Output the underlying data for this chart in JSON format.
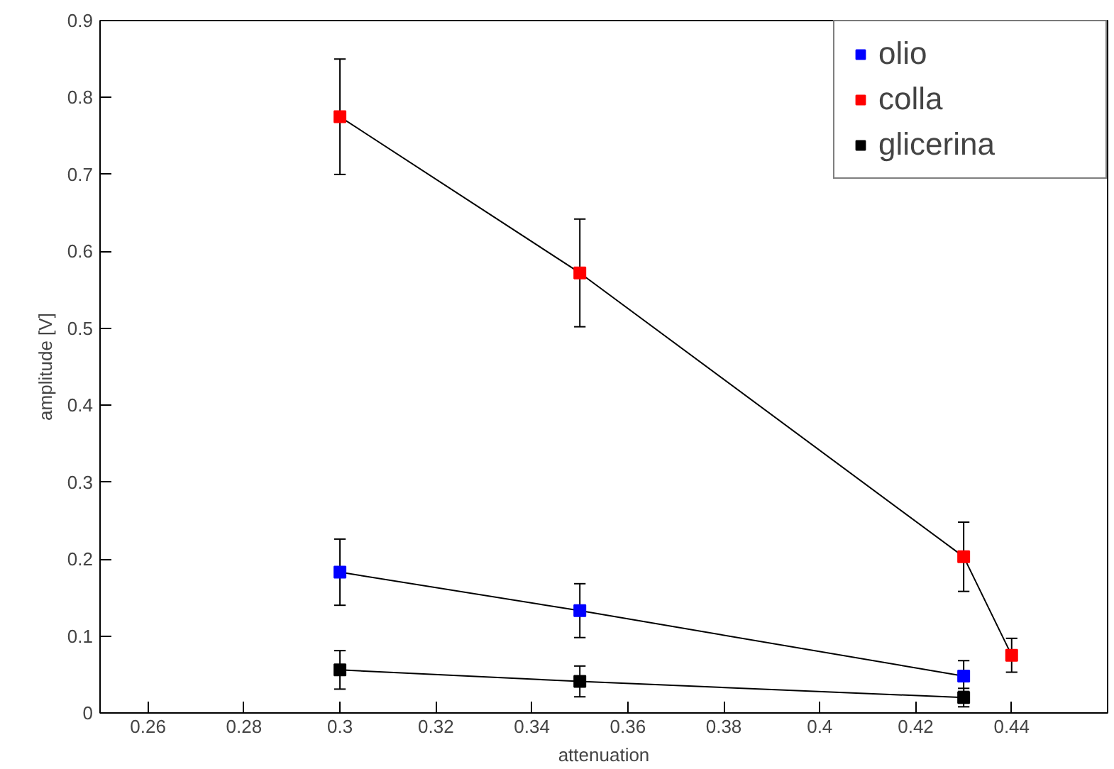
{
  "chart_data": {
    "type": "line",
    "xlabel": "attenuation",
    "ylabel": "amplitude [V]",
    "series": [
      {
        "name": "olio",
        "color": "#0000ff",
        "x": [
          0.3,
          0.35,
          0.43
        ],
        "values": [
          0.183,
          0.133,
          0.048
        ],
        "errors": [
          0.043,
          0.035,
          0.02
        ]
      },
      {
        "name": "colla",
        "color": "#ff0000",
        "x": [
          0.3,
          0.35,
          0.43,
          0.44
        ],
        "values": [
          0.775,
          0.572,
          0.203,
          0.075
        ],
        "errors": [
          0.075,
          0.07,
          0.045,
          0.022
        ]
      },
      {
        "name": "glicerina",
        "color": "#000000",
        "x": [
          0.3,
          0.35,
          0.43
        ],
        "values": [
          0.056,
          0.041,
          0.02
        ],
        "errors": [
          0.025,
          0.02,
          0.012
        ]
      }
    ],
    "xlim": [
      0.25,
      0.46
    ],
    "ylim": [
      0,
      0.9
    ],
    "xticks": [
      0.26,
      0.28,
      0.3,
      0.32,
      0.34,
      0.36,
      0.38,
      0.4,
      0.42,
      0.44
    ],
    "yticks": [
      0,
      0.1,
      0.2,
      0.3,
      0.4,
      0.5,
      0.6,
      0.7,
      0.8,
      0.9
    ],
    "grid": false,
    "legend": "top right",
    "marker": "square",
    "line_style": "solid"
  }
}
